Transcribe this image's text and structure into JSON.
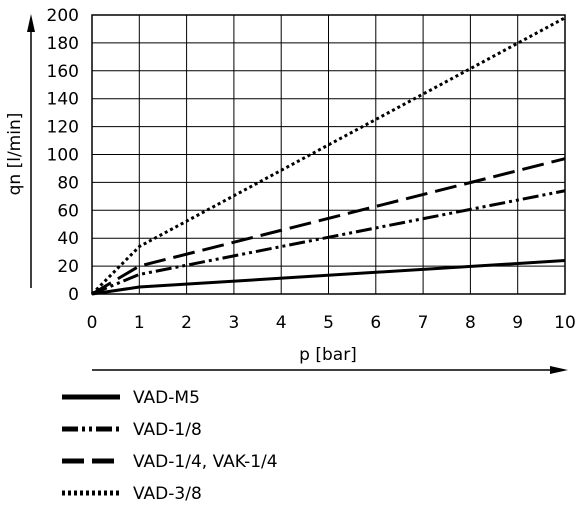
{
  "chart_data": {
    "type": "line",
    "title": "",
    "xlabel": "p [bar]",
    "ylabel": "qn [l/min]",
    "xlim": [
      0,
      10
    ],
    "ylim": [
      0,
      200
    ],
    "x_ticks": [
      0,
      1,
      2,
      3,
      4,
      5,
      6,
      7,
      8,
      9,
      10
    ],
    "y_ticks": [
      0,
      20,
      40,
      60,
      80,
      100,
      120,
      140,
      160,
      180,
      200
    ],
    "grid": true,
    "legend_position": "bottom",
    "series": [
      {
        "name": "VAD-M5",
        "style": "solid",
        "points": [
          [
            0,
            0
          ],
          [
            1,
            5
          ],
          [
            10,
            24
          ]
        ]
      },
      {
        "name": "VAD-1/8",
        "style": "dash-dot-dot",
        "points": [
          [
            0,
            0
          ],
          [
            1,
            14
          ],
          [
            10,
            74
          ]
        ]
      },
      {
        "name": "VAD-1/4, VAK-1/4",
        "style": "dashed",
        "points": [
          [
            0,
            0
          ],
          [
            1,
            20
          ],
          [
            10,
            97
          ]
        ]
      },
      {
        "name": "VAD-3/8",
        "style": "dotted",
        "points": [
          [
            0,
            0
          ],
          [
            1,
            34
          ],
          [
            10,
            198
          ]
        ]
      }
    ]
  }
}
